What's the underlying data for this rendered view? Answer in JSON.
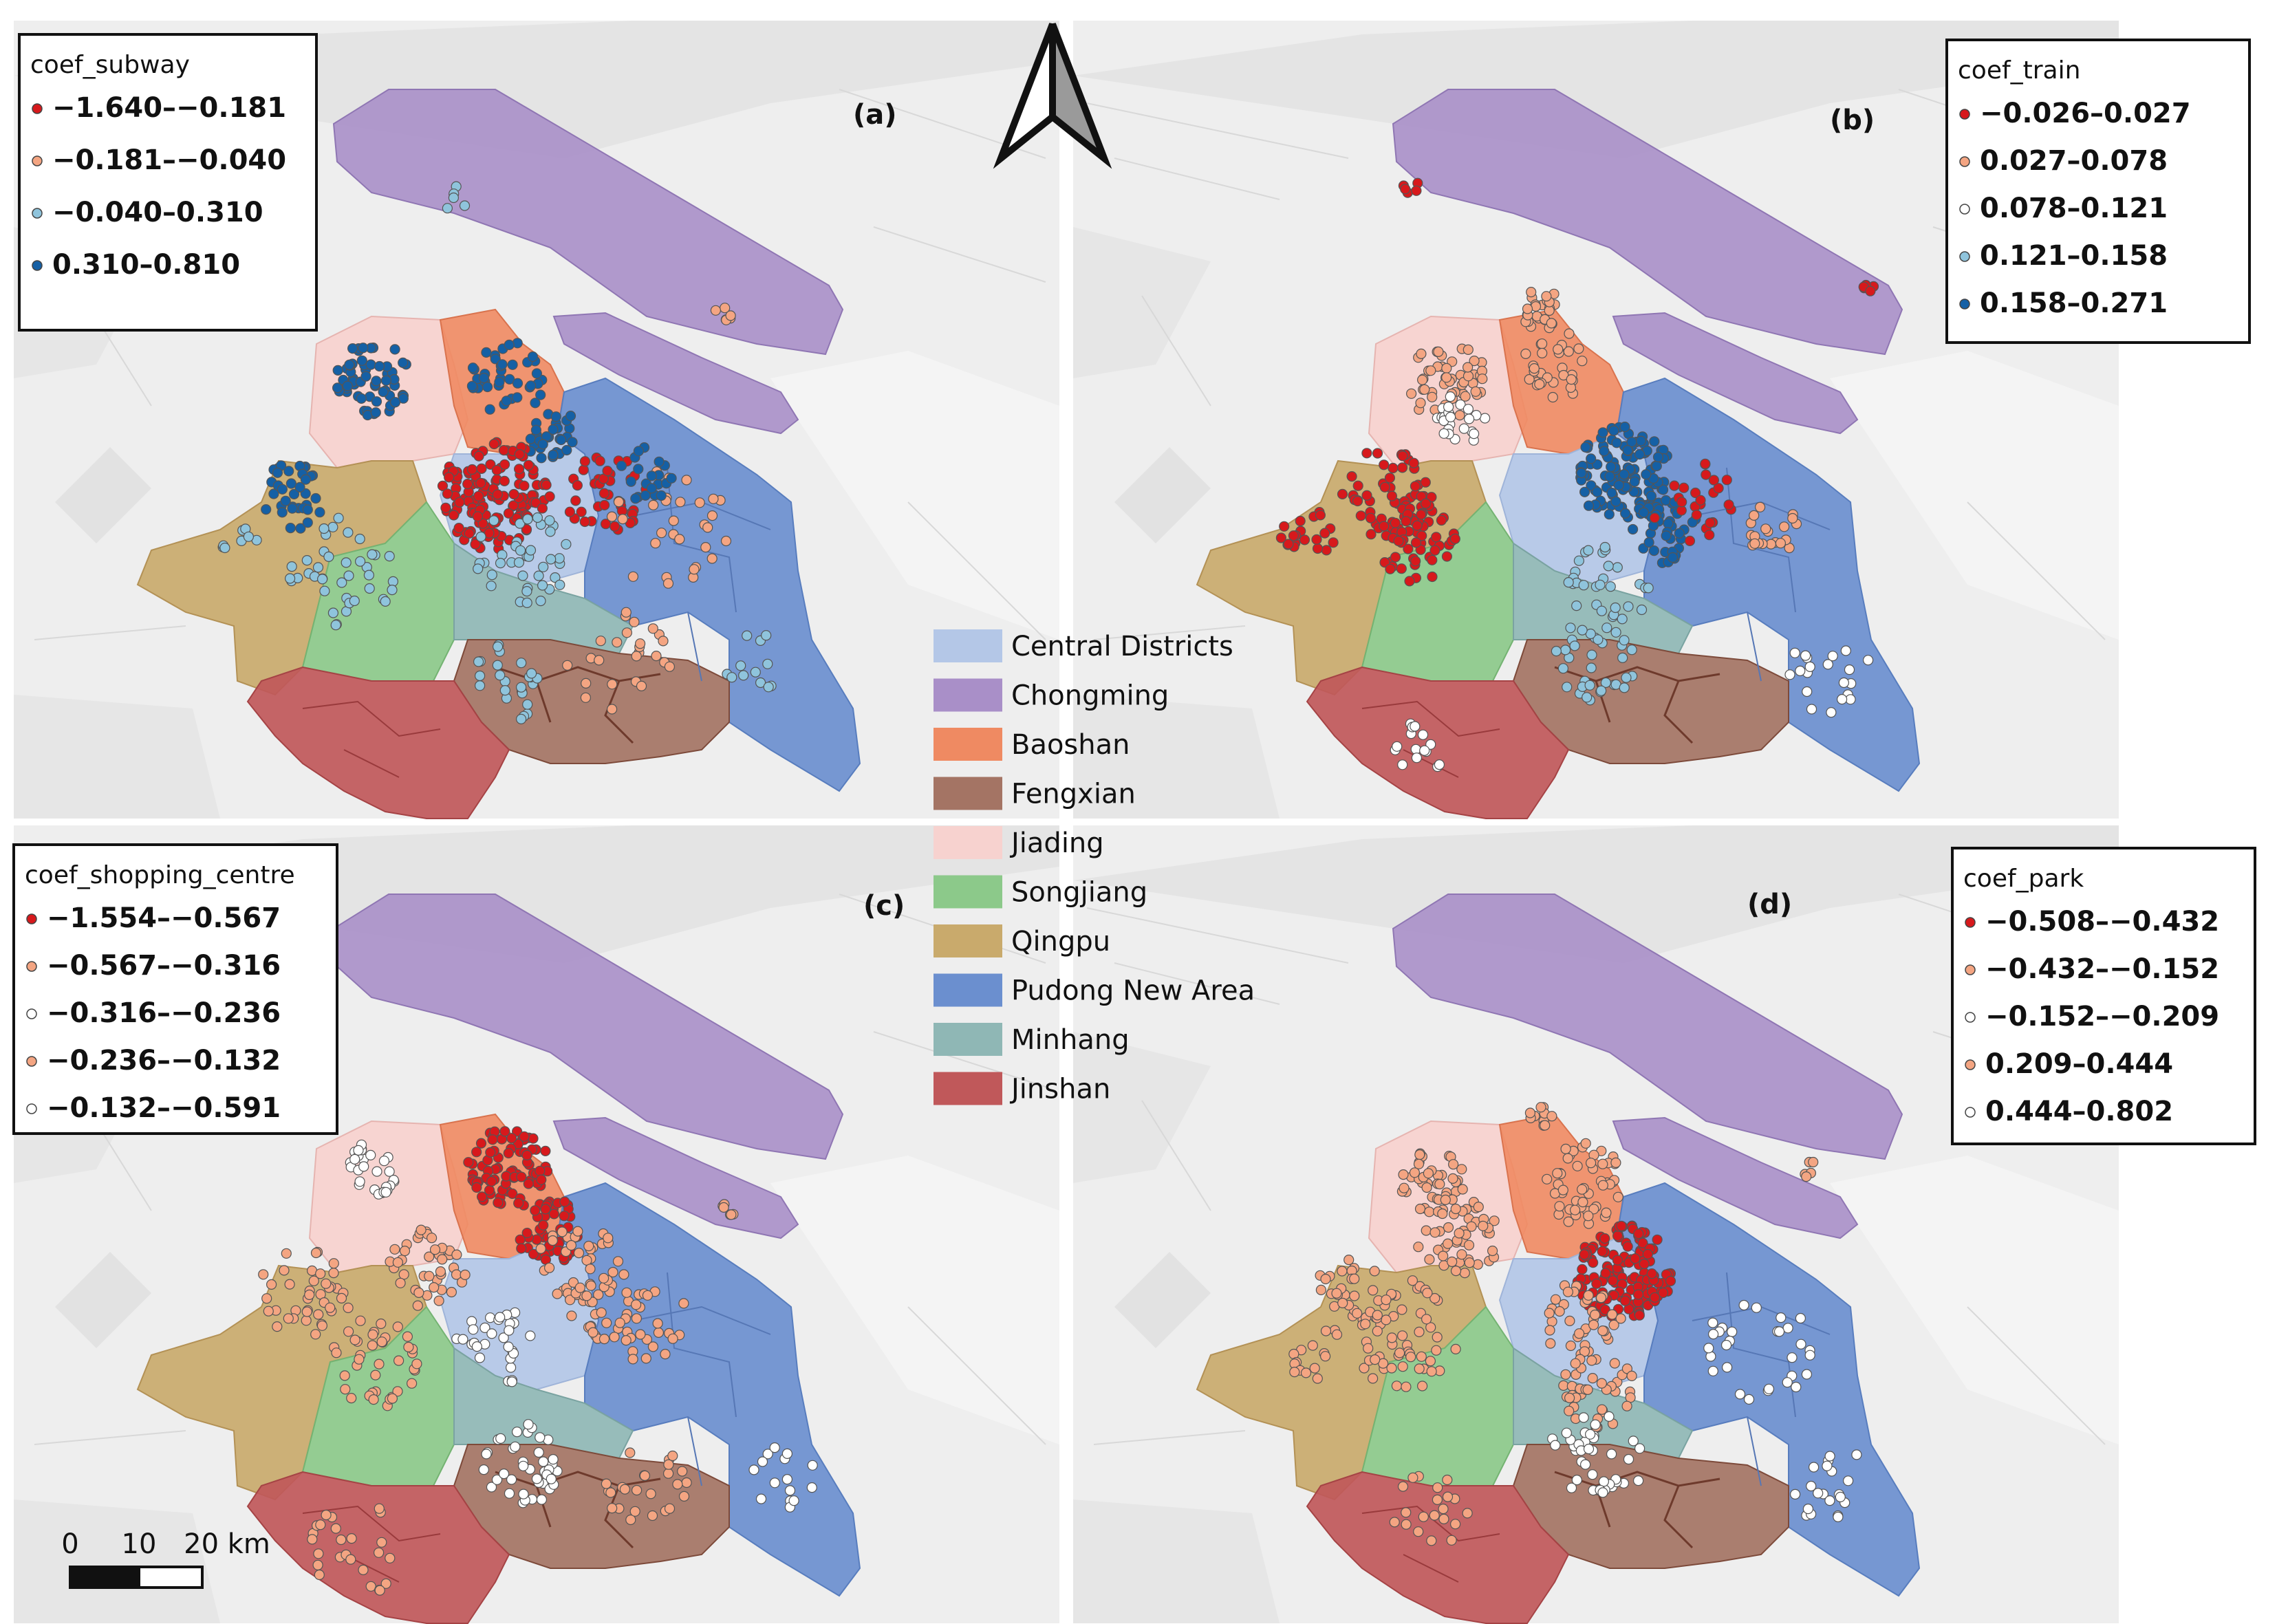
{
  "panels": [
    {
      "id": "a",
      "label": "(a)",
      "legend_title": "coef_subway",
      "classes": [
        {
          "range": "−1.640–−0.181",
          "color": "#d7191c"
        },
        {
          "range": "−0.181–−0.040",
          "color": "#f4a582"
        },
        {
          "range": "−0.040–0.310",
          "color": "#8fc4dc"
        },
        {
          "range": "0.310–0.810",
          "color": "#1560a5"
        }
      ]
    },
    {
      "id": "b",
      "label": "(b)",
      "legend_title": "coef_train",
      "classes": [
        {
          "range": "−0.026–0.027",
          "color": "#d7191c"
        },
        {
          "range": "0.027–0.078",
          "color": "#f4a582"
        },
        {
          "range": "0.078–0.121",
          "color": "#ffffff"
        },
        {
          "range": "0.121–0.158",
          "color": "#8fc4dc"
        },
        {
          "range": "0.158–0.271",
          "color": "#1560a5"
        }
      ]
    },
    {
      "id": "c",
      "label": "(c)",
      "legend_title": "coef_shopping_centre",
      "classes": [
        {
          "range": "−1.554–−0.567",
          "color": "#d7191c"
        },
        {
          "range": "−0.567–−0.316",
          "color": "#f4a582"
        },
        {
          "range": "−0.316–−0.236",
          "color": "#ffffff"
        },
        {
          "range": "−0.236–−0.132",
          "color": "#f4a582"
        },
        {
          "range": "−0.132–−0.591",
          "color": "#ffffff"
        }
      ]
    },
    {
      "id": "d",
      "label": "(d)",
      "legend_title": "coef_park",
      "classes": [
        {
          "range": "−0.508–−0.432",
          "color": "#d7191c"
        },
        {
          "range": "−0.432–−0.152",
          "color": "#f4a582"
        },
        {
          "range": "−0.152–−0.209",
          "color": "#ffffff"
        },
        {
          "range": "0.209–0.444",
          "color": "#f4a582"
        },
        {
          "range": "0.444–0.802",
          "color": "#ffffff"
        }
      ]
    }
  ],
  "district_legend": [
    {
      "name": "Central Districts",
      "color": "#b4c7e7"
    },
    {
      "name": "Chongming",
      "color": "#a98fc8"
    },
    {
      "name": "Baoshan",
      "color": "#ef8a62"
    },
    {
      "name": "Fengxian",
      "color": "#a47464"
    },
    {
      "name": "Jiading",
      "color": "#f7d2cf"
    },
    {
      "name": "Songjiang",
      "color": "#8cc98a"
    },
    {
      "name": "Qingpu",
      "color": "#c9aa6c"
    },
    {
      "name": "Pudong New Area",
      "color": "#6b8fcf"
    },
    {
      "name": "Minhang",
      "color": "#8fb7b5"
    },
    {
      "name": "Jinshan",
      "color": "#c0585a"
    }
  ],
  "scale_bar": {
    "ticks": [
      "0",
      "10",
      "20 km"
    ]
  },
  "north_arrow": {
    "icon": "north-arrow-icon"
  }
}
